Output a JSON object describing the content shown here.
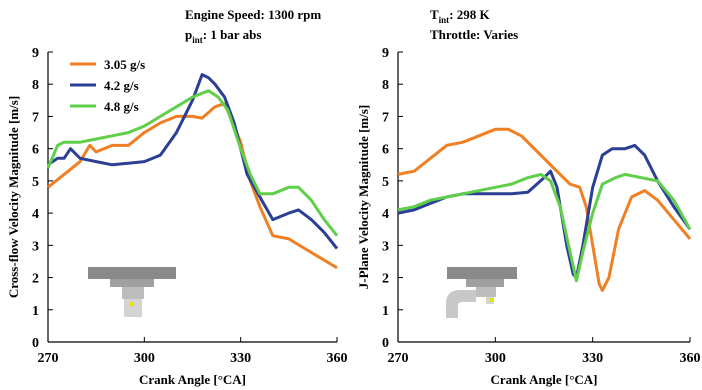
{
  "chart_data": [
    {
      "type": "line",
      "annotations": [
        {
          "text": "Engine Speed: 1300 rpm"
        },
        {
          "symbol": "p",
          "subscript": "int",
          "text": ": 1 bar abs"
        }
      ],
      "x_label": "Crank Angle [°CA]",
      "y_label": "Cross-flow Velocity Magnitude  [m/s]",
      "xlim": [
        270,
        360
      ],
      "xticks": [
        270,
        300,
        330,
        360
      ],
      "ylim": [
        0,
        9
      ],
      "yticks": [
        0,
        1,
        2,
        3,
        4,
        5,
        6,
        7,
        8,
        9
      ],
      "legend": "upper left",
      "series": [
        {
          "name": "3.05 g/s",
          "color": "#f07f24",
          "x": [
            270,
            275,
            280,
            283,
            285,
            290,
            295,
            300,
            305,
            310,
            315,
            318,
            322,
            325,
            330,
            333,
            336,
            340,
            345,
            350,
            355,
            360
          ],
          "values": [
            4.8,
            5.2,
            5.6,
            6.1,
            5.9,
            6.1,
            6.1,
            6.5,
            6.8,
            7.0,
            7.0,
            6.95,
            7.3,
            7.4,
            6.2,
            5.0,
            4.2,
            3.3,
            3.2,
            2.9,
            2.6,
            2.3
          ]
        },
        {
          "name": "4.2 g/s",
          "color": "#2b3f94",
          "x": [
            270,
            273,
            275,
            277,
            280,
            285,
            290,
            295,
            300,
            305,
            310,
            315,
            318,
            320,
            322,
            325,
            328,
            332,
            336,
            340,
            345,
            348,
            352,
            356,
            360
          ],
          "values": [
            5.5,
            5.7,
            5.7,
            6.0,
            5.7,
            5.6,
            5.5,
            5.55,
            5.6,
            5.8,
            6.5,
            7.5,
            8.3,
            8.2,
            8.0,
            7.6,
            6.8,
            5.2,
            4.5,
            3.8,
            4.0,
            4.1,
            3.8,
            3.4,
            2.9
          ]
        },
        {
          "name": "4.8 g/s",
          "color": "#5fcf4a",
          "x": [
            270,
            273,
            275,
            280,
            285,
            290,
            295,
            300,
            305,
            310,
            315,
            320,
            323,
            326,
            330,
            333,
            336,
            340,
            345,
            348,
            352,
            356,
            360
          ],
          "values": [
            5.4,
            6.1,
            6.2,
            6.2,
            6.3,
            6.4,
            6.5,
            6.7,
            7.0,
            7.3,
            7.6,
            7.8,
            7.6,
            7.2,
            6.0,
            5.2,
            4.6,
            4.6,
            4.8,
            4.8,
            4.4,
            3.8,
            3.3
          ]
        }
      ]
    },
    {
      "type": "line",
      "annotations": [
        {
          "symbol": "T",
          "subscript": "int",
          "text": ": 298 K"
        },
        {
          "text": "Throttle: Varies"
        }
      ],
      "x_label": "Crank Angle [°CA]",
      "y_label": "J-Plane Velocity Magnitude [m/s]",
      "xlim": [
        270,
        360
      ],
      "xticks": [
        270,
        300,
        330,
        360
      ],
      "ylim": [
        0,
        9
      ],
      "yticks": [
        0,
        1,
        2,
        3,
        4,
        5,
        6,
        7,
        8,
        9
      ],
      "series": [
        {
          "color": "#f07f24",
          "x": [
            270,
            275,
            280,
            285,
            290,
            295,
            300,
            304,
            308,
            312,
            316,
            320,
            323,
            326,
            328,
            330,
            332,
            333,
            335,
            338,
            342,
            346,
            350,
            355,
            360
          ],
          "values": [
            5.2,
            5.3,
            5.7,
            6.1,
            6.2,
            6.4,
            6.6,
            6.6,
            6.4,
            6.0,
            5.6,
            5.2,
            4.9,
            4.8,
            4.2,
            3.0,
            1.8,
            1.6,
            2.0,
            3.5,
            4.5,
            4.7,
            4.4,
            3.8,
            3.2
          ]
        },
        {
          "color": "#2b3f94",
          "x": [
            270,
            275,
            280,
            285,
            290,
            300,
            305,
            310,
            315,
            317,
            319,
            322,
            324,
            325,
            327,
            330,
            333,
            336,
            340,
            343,
            346,
            350,
            355,
            360
          ],
          "values": [
            4.0,
            4.1,
            4.3,
            4.5,
            4.6,
            4.6,
            4.6,
            4.65,
            5.1,
            5.3,
            4.8,
            3.0,
            2.1,
            2.0,
            3.0,
            4.8,
            5.8,
            6.0,
            6.0,
            6.1,
            5.8,
            5.0,
            4.2,
            3.5
          ]
        },
        {
          "color": "#5fcf4a",
          "x": [
            270,
            275,
            280,
            285,
            290,
            300,
            305,
            310,
            314,
            317,
            320,
            323,
            325,
            327,
            330,
            333,
            337,
            340,
            345,
            350,
            355,
            360
          ],
          "values": [
            4.1,
            4.2,
            4.4,
            4.5,
            4.6,
            4.8,
            4.9,
            5.1,
            5.2,
            5.0,
            4.2,
            2.8,
            1.9,
            2.8,
            4.0,
            4.9,
            5.1,
            5.2,
            5.1,
            5.0,
            4.4,
            3.5
          ]
        }
      ]
    }
  ]
}
